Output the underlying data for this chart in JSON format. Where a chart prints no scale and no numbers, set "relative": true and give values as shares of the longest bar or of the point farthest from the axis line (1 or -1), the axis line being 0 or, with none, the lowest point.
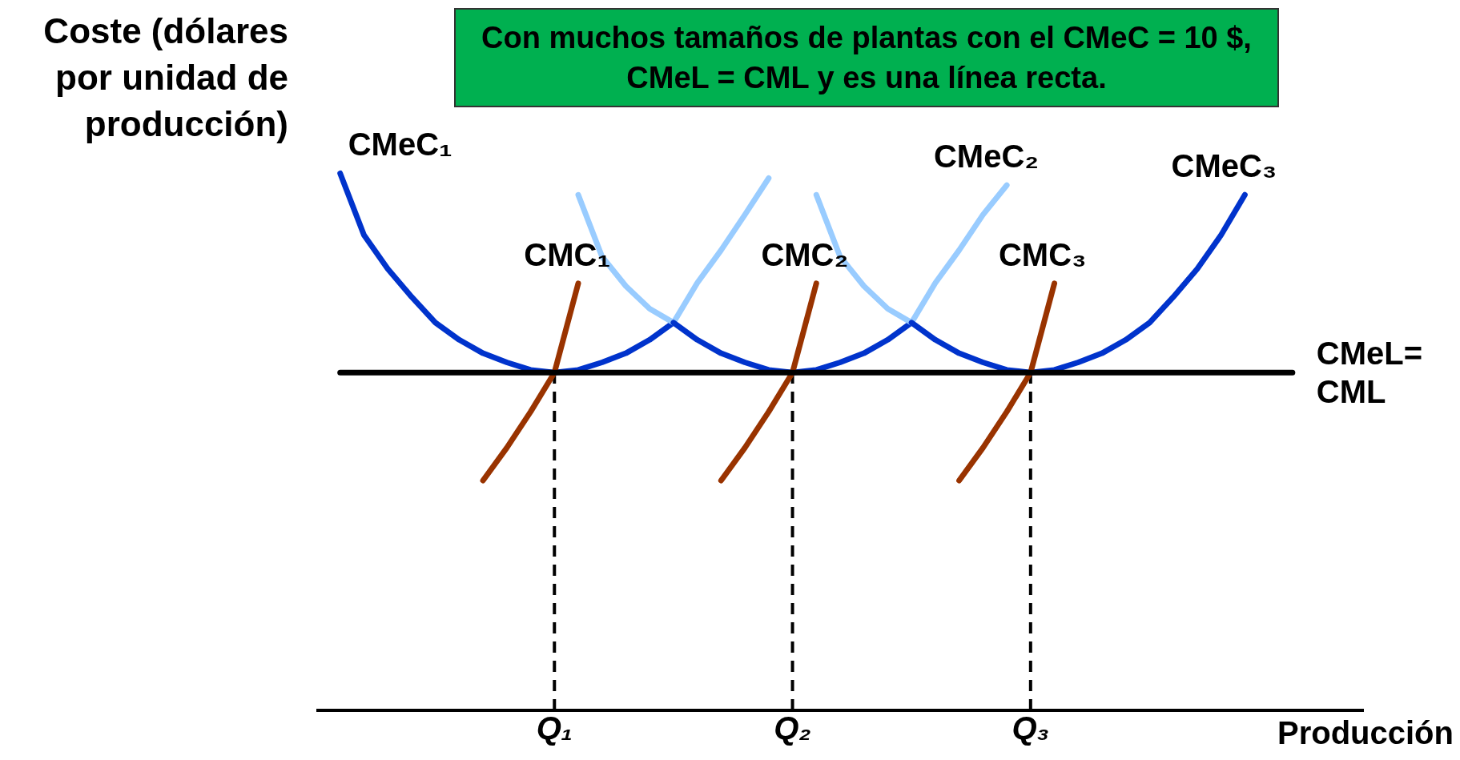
{
  "chart_data": {
    "type": "line",
    "relative": true,
    "ylabel": "Coste (dólares por unidad de producción)",
    "xlabel": "Producción",
    "annotations": [
      "Con muchos tamaños de plantas con el CMeC = 10 $, CMeL = CML y es una línea recta."
    ],
    "categories": [
      null,
      null,
      null,
      null,
      null,
      null,
      null,
      null,
      null,
      null,
      "Q₁",
      null,
      null,
      null,
      null,
      null,
      null,
      null,
      null,
      null,
      "Q₂",
      null,
      null,
      null,
      null,
      null,
      null,
      null,
      null,
      null,
      "Q₃",
      null,
      null,
      null,
      null,
      null,
      null,
      null,
      null,
      null,
      null,
      null,
      null,
      null,
      null
    ],
    "ref_lines": [
      {
        "axis": "x",
        "value": "Q₁",
        "color": "#000000",
        "line_style": "dashed"
      },
      {
        "axis": "x",
        "value": "Q₂",
        "color": "#000000",
        "line_style": "dashed"
      },
      {
        "axis": "x",
        "value": "Q₃",
        "color": "#000000",
        "line_style": "dashed"
      }
    ],
    "series": [
      {
        "name": "CMeC₁",
        "color": "#0033cc",
        "values": [
          null,
          1.0,
          0.885,
          0.822,
          0.77,
          0.722,
          0.69,
          0.665,
          0.648,
          0.634,
          0.629,
          0.634,
          0.648,
          0.665,
          0.69,
          0.722,
          null,
          null,
          null,
          null,
          null,
          null,
          null,
          null,
          null,
          null,
          null,
          null,
          null,
          null,
          null,
          null,
          null,
          null,
          null,
          null,
          null,
          null,
          null,
          null,
          null,
          null,
          null,
          null,
          null
        ]
      },
      {
        "color": "#99ccff",
        "values": [
          null,
          null,
          null,
          null,
          null,
          null,
          null,
          null,
          null,
          null,
          null,
          null,
          null,
          null,
          null,
          0.722,
          0.796,
          0.857,
          0.923,
          0.991,
          null,
          null,
          null,
          null,
          null,
          null,
          null,
          null,
          null,
          null,
          null,
          null,
          null,
          null,
          null,
          null,
          null,
          null,
          null,
          null,
          null,
          null,
          null,
          null,
          null
        ]
      },
      {
        "color": "#99ccff",
        "values": [
          null,
          null,
          null,
          null,
          null,
          null,
          null,
          null,
          null,
          null,
          null,
          0.96,
          0.845,
          0.79,
          0.748,
          0.722,
          null,
          null,
          null,
          null,
          null,
          null,
          null,
          null,
          null,
          null,
          null,
          null,
          null,
          null,
          null,
          null,
          null,
          null,
          null,
          null,
          null,
          null,
          null,
          null,
          null,
          null,
          null,
          null,
          null
        ]
      },
      {
        "color": "#0033cc",
        "values": [
          null,
          null,
          null,
          null,
          null,
          null,
          null,
          null,
          null,
          null,
          null,
          null,
          null,
          null,
          null,
          0.722,
          0.69,
          0.665,
          0.648,
          0.634,
          0.629,
          0.634,
          0.648,
          0.665,
          0.69,
          0.722,
          null,
          null,
          null,
          null,
          null,
          null,
          null,
          null,
          null,
          null,
          null,
          null,
          null,
          null,
          null,
          null,
          null,
          null,
          null
        ]
      },
      {
        "name": "CMeC₂",
        "color": "#99ccff",
        "values": [
          null,
          null,
          null,
          null,
          null,
          null,
          null,
          null,
          null,
          null,
          null,
          null,
          null,
          null,
          null,
          null,
          null,
          null,
          null,
          null,
          null,
          null,
          null,
          null,
          null,
          0.722,
          0.796,
          0.857,
          0.923,
          0.978,
          null,
          null,
          null,
          null,
          null,
          null,
          null,
          null,
          null,
          null,
          null,
          null,
          null,
          null,
          null
        ]
      },
      {
        "color": "#99ccff",
        "values": [
          null,
          null,
          null,
          null,
          null,
          null,
          null,
          null,
          null,
          null,
          null,
          null,
          null,
          null,
          null,
          null,
          null,
          null,
          null,
          null,
          null,
          0.96,
          0.845,
          0.79,
          0.748,
          0.722,
          null,
          null,
          null,
          null,
          null,
          null,
          null,
          null,
          null,
          null,
          null,
          null,
          null,
          null,
          null,
          null,
          null,
          null,
          null
        ]
      },
      {
        "name": "CMeC₃",
        "color": "#0033cc",
        "values": [
          null,
          null,
          null,
          null,
          null,
          null,
          null,
          null,
          null,
          null,
          null,
          null,
          null,
          null,
          null,
          null,
          null,
          null,
          null,
          null,
          null,
          null,
          null,
          null,
          null,
          0.722,
          0.69,
          0.665,
          0.648,
          0.634,
          0.629,
          0.634,
          0.648,
          0.665,
          0.69,
          0.722,
          0.77,
          0.822,
          0.885,
          0.96,
          null,
          null,
          null,
          null,
          null
        ]
      },
      {
        "name": "CMC₁",
        "color": "#993300",
        "values": [
          null,
          null,
          null,
          null,
          null,
          null,
          null,
          0.428,
          0.489,
          0.556,
          0.629,
          0.795,
          null,
          null,
          null,
          null,
          null,
          null,
          null,
          null,
          null,
          null,
          null,
          null,
          null,
          null,
          null,
          null,
          null,
          null,
          null,
          null,
          null,
          null,
          null,
          null,
          null,
          null,
          null,
          null,
          null,
          null,
          null,
          null,
          null
        ]
      },
      {
        "name": "CMC₂",
        "color": "#993300",
        "values": [
          null,
          null,
          null,
          null,
          null,
          null,
          null,
          null,
          null,
          null,
          null,
          null,
          null,
          null,
          null,
          null,
          null,
          0.428,
          0.489,
          0.556,
          0.629,
          0.795,
          null,
          null,
          null,
          null,
          null,
          null,
          null,
          null,
          null,
          null,
          null,
          null,
          null,
          null,
          null,
          null,
          null,
          null,
          null,
          null,
          null,
          null,
          null
        ]
      },
      {
        "name": "CMC₃",
        "color": "#993300",
        "values": [
          null,
          null,
          null,
          null,
          null,
          null,
          null,
          null,
          null,
          null,
          null,
          null,
          null,
          null,
          null,
          null,
          null,
          null,
          null,
          null,
          null,
          null,
          null,
          null,
          null,
          null,
          null,
          0.428,
          0.489,
          0.556,
          0.629,
          0.795,
          null,
          null,
          null,
          null,
          null,
          null,
          null,
          null,
          null,
          null,
          null,
          null,
          null
        ]
      },
      {
        "name": "CMeL= CML",
        "color": "#000000",
        "values": [
          null,
          0.629,
          0.629,
          0.629,
          0.629,
          0.629,
          0.629,
          0.629,
          0.629,
          0.629,
          0.629,
          0.629,
          0.629,
          0.629,
          0.629,
          0.629,
          0.629,
          0.629,
          0.629,
          0.629,
          0.629,
          0.629,
          0.629,
          0.629,
          0.629,
          0.629,
          0.629,
          0.629,
          0.629,
          0.629,
          0.629,
          0.629,
          0.629,
          0.629,
          0.629,
          0.629,
          0.629,
          0.629,
          0.629,
          0.629,
          0.629,
          0.629,
          null,
          null,
          null
        ]
      }
    ]
  }
}
